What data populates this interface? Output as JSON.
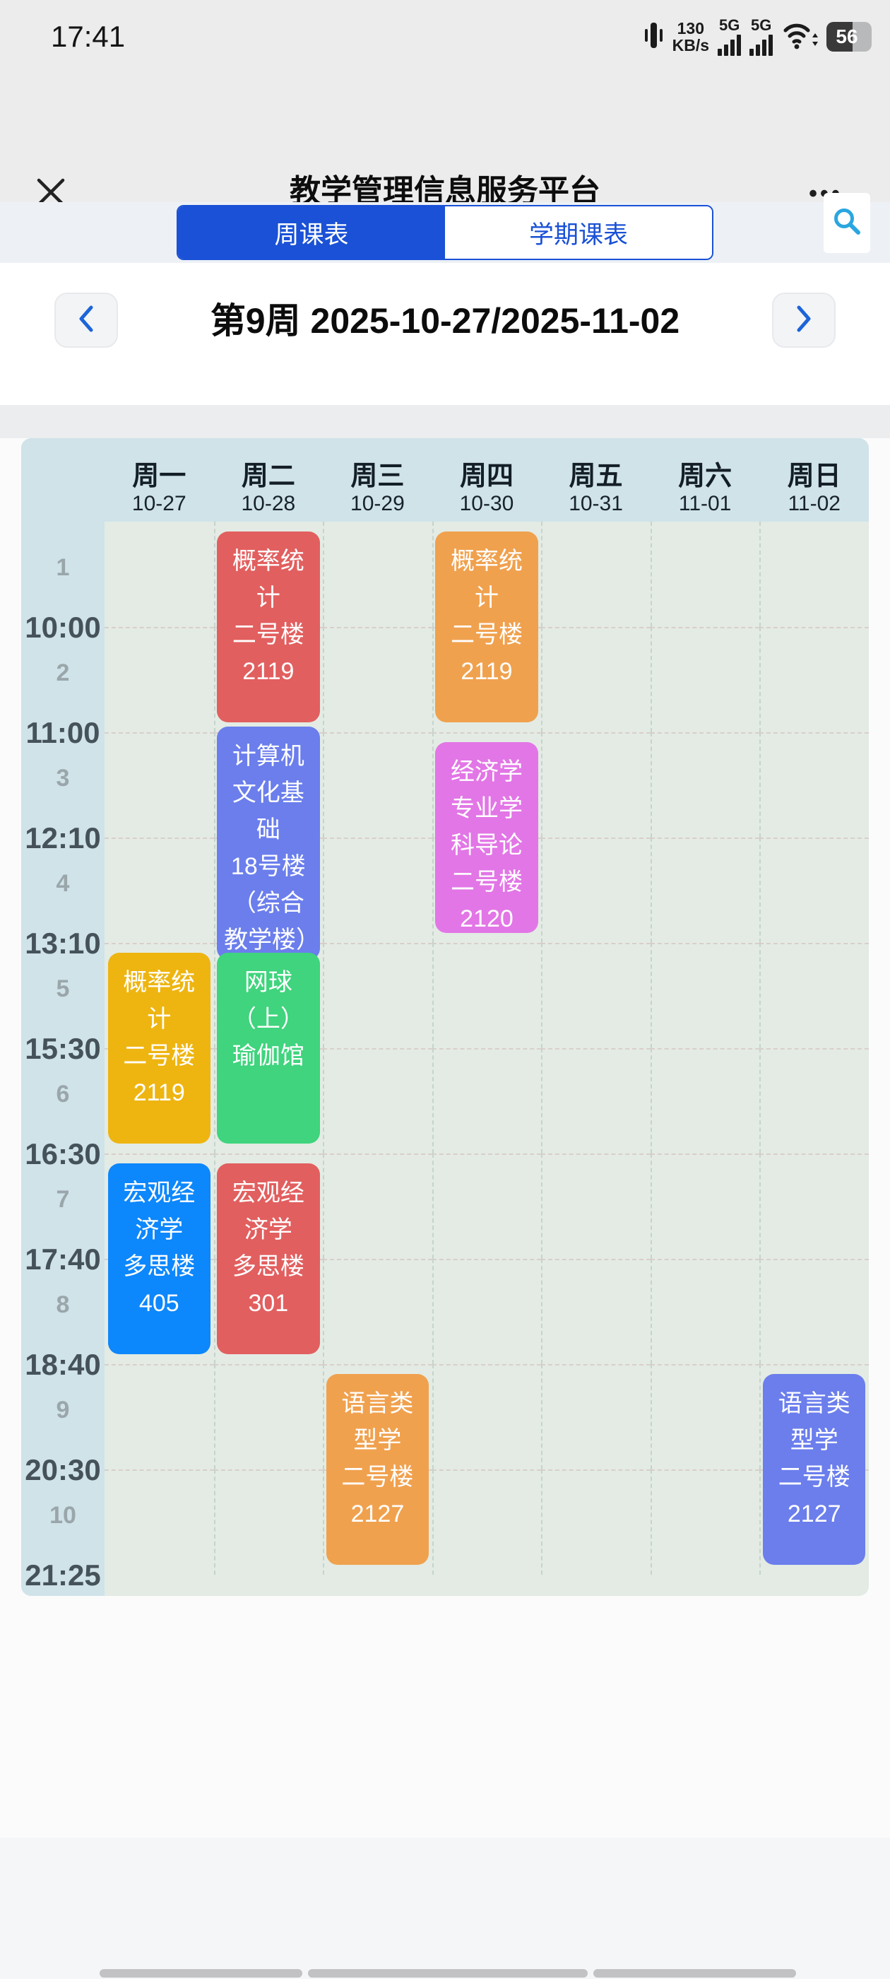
{
  "status_bar": {
    "time": "17:41",
    "net_down": "130",
    "net_unit": "KB/s",
    "sig1": "5G",
    "sig2": "5G",
    "battery": "56"
  },
  "header": {
    "title": "教学管理信息服务平台",
    "url": "jwxt.xjau.edu.cn",
    "menu_glyph": "•••"
  },
  "tabs": {
    "week": "周课表",
    "semester": "学期课表"
  },
  "week_nav": {
    "label": "第9周 2025-10-27/2025-11-02"
  },
  "schedule": {
    "days": [
      {
        "name": "周一",
        "date": "10-27"
      },
      {
        "name": "周二",
        "date": "10-28"
      },
      {
        "name": "周三",
        "date": "10-29"
      },
      {
        "name": "周四",
        "date": "10-30"
      },
      {
        "name": "周五",
        "date": "10-31"
      },
      {
        "name": "周六",
        "date": "11-01"
      },
      {
        "name": "周日",
        "date": "11-02"
      }
    ],
    "periods": [
      {
        "num": "1",
        "end_time": "10:00"
      },
      {
        "num": "2",
        "end_time": "11:00"
      },
      {
        "num": "3",
        "end_time": "12:10"
      },
      {
        "num": "4",
        "end_time": "13:10"
      },
      {
        "num": "5",
        "end_time": "15:30"
      },
      {
        "num": "6",
        "end_time": "16:30"
      },
      {
        "num": "7",
        "end_time": "17:40"
      },
      {
        "num": "8",
        "end_time": "18:40"
      },
      {
        "num": "9",
        "end_time": "20:30"
      },
      {
        "num": "10",
        "end_time": "21:25"
      }
    ],
    "colors": {
      "red": "#e25f5f",
      "orange": "#f0a14e",
      "periwinkle": "#6b7eec",
      "orchid": "#e276e6",
      "gold": "#eeb511",
      "green": "#3fd47d",
      "blue": "#0d87fc"
    },
    "courses": [
      {
        "day": 2,
        "start": 1,
        "span": 2,
        "color": "red",
        "name": "概率统计",
        "room": "二号楼2119"
      },
      {
        "day": 4,
        "start": 1,
        "span": 2,
        "color": "orange",
        "name": "概率统计",
        "room": "二号楼2119"
      },
      {
        "day": 2,
        "start": 3,
        "span": 2,
        "color": "periwinkle",
        "name": "计算机文化基础",
        "room": "18号楼（综合教学楼）",
        "overflow": true
      },
      {
        "day": 4,
        "start": 3,
        "span": 2,
        "color": "orchid",
        "name": "经济学专业学科导论",
        "room": "二号楼2120"
      },
      {
        "day": 1,
        "start": 5,
        "span": 2,
        "color": "gold",
        "name": "概率统计",
        "room": "二号楼2119"
      },
      {
        "day": 2,
        "start": 5,
        "span": 2,
        "color": "green",
        "name": "网球（上）",
        "room": "瑜伽馆"
      },
      {
        "day": 1,
        "start": 7,
        "span": 2,
        "color": "blue",
        "name": "宏观经济学",
        "room": "多思楼405"
      },
      {
        "day": 2,
        "start": 7,
        "span": 2,
        "color": "red",
        "name": "宏观经济学",
        "room": "多思楼301"
      },
      {
        "day": 3,
        "start": 9,
        "span": 2,
        "color": "orange",
        "name": "语言类型学",
        "room": "二号楼2127"
      },
      {
        "day": 7,
        "start": 9,
        "span": 2,
        "color": "periwinkle",
        "name": "语言类型学",
        "room": "二号楼2127"
      }
    ]
  }
}
